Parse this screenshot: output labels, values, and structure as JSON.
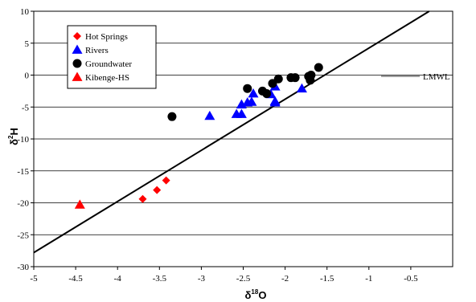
{
  "chart_data": {
    "type": "scatter",
    "title": "",
    "xlim": [
      -5,
      0
    ],
    "ylim": [
      -30,
      10
    ],
    "x_ticks": [
      "-5",
      "-4.5",
      "-4",
      "-3.5",
      "-3",
      "-2.5",
      "-2",
      "-1.5",
      "-1",
      "-0.5"
    ],
    "y_ticks": [
      "10",
      "5",
      "0",
      "-5",
      "-10",
      "-15",
      "-20",
      "-25",
      "-30"
    ],
    "grid": "horizontal",
    "legend_position": "top-left",
    "series": [
      {
        "name": "Hot Springs",
        "marker": "diamond",
        "color": "#ff0000",
        "points": [
          {
            "x": -3.7,
            "y": -19.4
          },
          {
            "x": -3.53,
            "y": -18.0
          },
          {
            "x": -3.42,
            "y": -16.5
          }
        ]
      },
      {
        "name": "Rivers",
        "marker": "triangle",
        "color": "#0000ff",
        "points": [
          {
            "x": -2.9,
            "y": -6.4
          },
          {
            "x": -2.58,
            "y": -6.1
          },
          {
            "x": -2.52,
            "y": -6.1
          },
          {
            "x": -2.52,
            "y": -4.6
          },
          {
            "x": -2.45,
            "y": -4.3
          },
          {
            "x": -2.4,
            "y": -4.2
          },
          {
            "x": -2.38,
            "y": -2.9
          },
          {
            "x": -2.17,
            "y": -3.0
          },
          {
            "x": -2.12,
            "y": -4.1
          },
          {
            "x": -2.12,
            "y": -1.8
          },
          {
            "x": -1.8,
            "y": -2.1
          },
          {
            "x": -2.12,
            "y": -4.3
          }
        ]
      },
      {
        "name": "Groundwater",
        "marker": "circle",
        "color": "#000000",
        "points": [
          {
            "x": -3.35,
            "y": -6.5
          },
          {
            "x": -2.45,
            "y": -2.1
          },
          {
            "x": -2.27,
            "y": -2.5
          },
          {
            "x": -2.22,
            "y": -2.9
          },
          {
            "x": -2.15,
            "y": -1.3
          },
          {
            "x": -2.08,
            "y": -0.6
          },
          {
            "x": -1.93,
            "y": -0.4
          },
          {
            "x": -1.88,
            "y": -0.4
          },
          {
            "x": -1.72,
            "y": -0.2
          },
          {
            "x": -1.69,
            "y": 0.0
          },
          {
            "x": -1.7,
            "y": -0.8
          },
          {
            "x": -1.6,
            "y": 1.2
          }
        ]
      },
      {
        "name": "Kibenge-HS",
        "marker": "triangle",
        "color": "#ff0000",
        "points": [
          {
            "x": -4.45,
            "y": -20.3
          }
        ]
      }
    ],
    "lines": [
      {
        "label": "LMWL",
        "x": [
          -5,
          -0.28
        ],
        "y": [
          -27.8,
          10
        ]
      }
    ]
  },
  "axes": {
    "xlabel": "δ18O",
    "xlabel_base": "δ",
    "xlabel_sup": "18",
    "xlabel_end": "O",
    "ylabel": "δ2H",
    "ylabel_base": "δ",
    "ylabel_sup": "2",
    "ylabel_end": "H"
  },
  "annotation": {
    "label": "LMWL"
  },
  "colors": {
    "hot_springs": "#ff0000",
    "rivers": "#0000ff",
    "groundwater": "#000000",
    "kibenge": "#ff0000"
  }
}
